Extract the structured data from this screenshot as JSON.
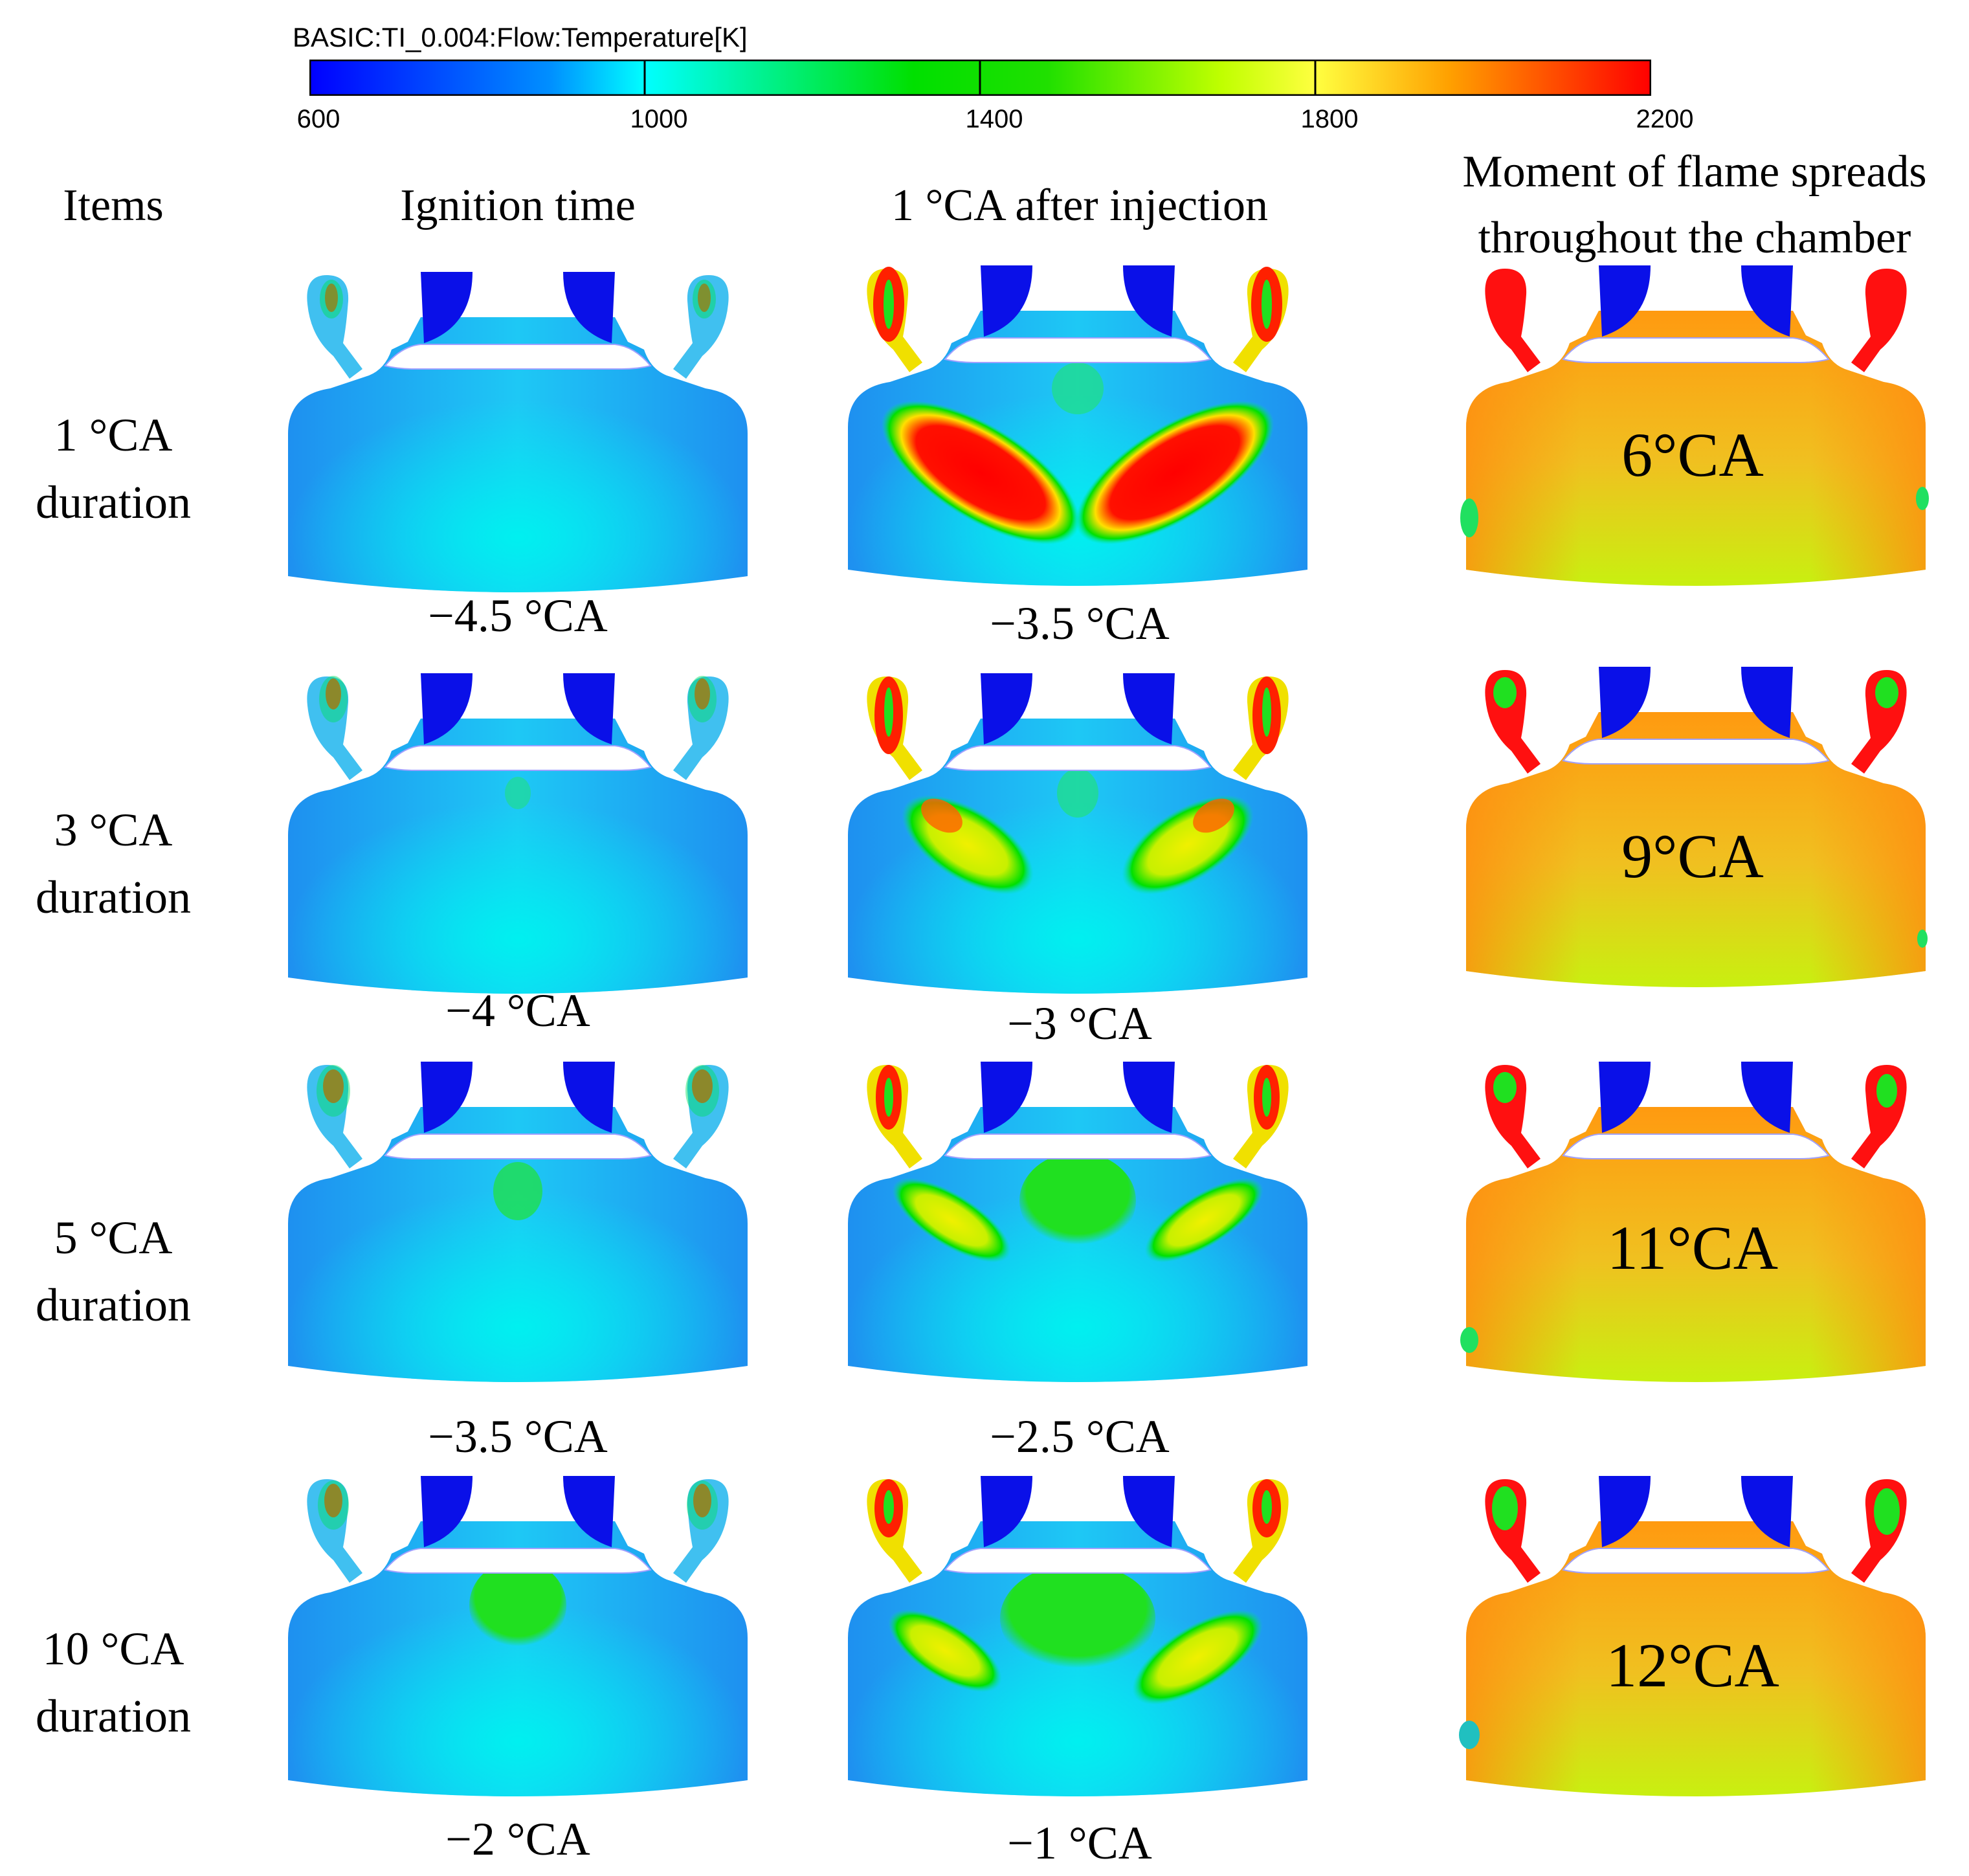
{
  "colorbar": {
    "title": "BASIC:TI_0.004:Flow:Temperature[K]",
    "ticks": [
      "600",
      "1000",
      "1400",
      "1800",
      "2200"
    ],
    "stops": [
      "#0000ff",
      "#00c8ff",
      "#00ffff",
      "#00ff00",
      "#a0ff00",
      "#ffff00",
      "#ffa000",
      "#ff0000"
    ]
  },
  "headers": {
    "items": "Items",
    "ignition": "Ignition time",
    "after": "1 °CA after injection",
    "moment_line1": "Moment of flame spreads",
    "moment_line2": "throughout the chamber"
  },
  "rows": [
    {
      "line1": "1 °CA",
      "line2": "duration",
      "ign_time": "−4.5 °CA",
      "after_time": "−3.5 °CA",
      "spread": "6°CA"
    },
    {
      "line1": "3 °CA",
      "line2": "duration",
      "ign_time": "−4 °CA",
      "after_time": "−3 °CA",
      "spread": "9°CA"
    },
    {
      "line1": "5 °CA",
      "line2": "duration",
      "ign_time": "−3.5 °CA",
      "after_time": "−2.5 °CA",
      "spread": "11°CA"
    },
    {
      "line1": "10 °CA",
      "line2": "duration",
      "ign_time": "−2 °CA",
      "after_time": "−1 °CA",
      "spread": "12°CA"
    }
  ]
}
